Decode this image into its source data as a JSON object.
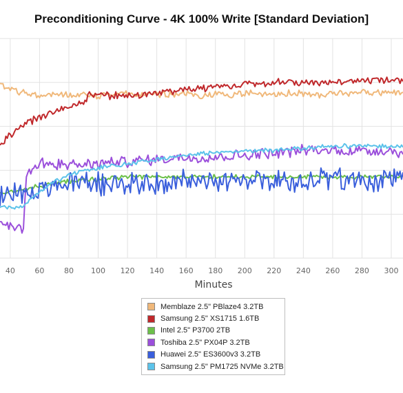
{
  "chart_data": {
    "type": "line",
    "title": "Preconditioning Curve - 4K 100% Write [Standard Deviation]",
    "xlabel": "Minutes",
    "ylabel": "",
    "xlim": [
      33,
      308
    ],
    "ylim": [
      0,
      10
    ],
    "x_ticks": [
      40,
      60,
      80,
      100,
      120,
      140,
      160,
      180,
      200,
      220,
      240,
      260,
      280,
      300
    ],
    "grid": true,
    "legend_position": "bottom-center",
    "series": [
      {
        "name": "Memblaze 2.5\" PBlaze4 3.2TB",
        "color": "#f0b87a",
        "x": [
          33,
          40,
          50,
          60,
          70,
          80,
          90,
          100,
          110,
          120,
          130,
          140,
          150,
          160,
          170,
          180,
          190,
          200,
          210,
          220,
          230,
          240,
          250,
          260,
          270,
          280,
          290,
          300,
          308
        ],
        "y": [
          7.9,
          7.7,
          7.5,
          7.4,
          7.5,
          7.4,
          7.5,
          7.4,
          7.5,
          7.5,
          7.4,
          7.5,
          7.4,
          7.5,
          7.4,
          7.5,
          7.4,
          7.5,
          7.5,
          7.4,
          7.5,
          7.5,
          7.4,
          7.5,
          7.5,
          7.6,
          7.5,
          7.6,
          7.5
        ],
        "noise": 0.12
      },
      {
        "name": "Samsung 2.5\" XS1715 1.6TB",
        "color": "#c0282b",
        "x": [
          33,
          40,
          50,
          60,
          70,
          80,
          90,
          95,
          100,
          120,
          140,
          160,
          180,
          200,
          220,
          240,
          260,
          280,
          300,
          308
        ],
        "y": [
          5.2,
          5.6,
          6.1,
          6.4,
          6.7,
          6.9,
          7.1,
          7.5,
          7.4,
          7.4,
          7.5,
          7.7,
          7.8,
          7.9,
          8.0,
          8.0,
          8.0,
          8.1,
          8.1,
          8.1
        ],
        "noise": 0.13
      },
      {
        "name": "Intel 2.5\" P3700 2TB",
        "color": "#6cc04a",
        "x": [
          33,
          40,
          50,
          60,
          80,
          100,
          120,
          140,
          160,
          180,
          200,
          220,
          240,
          260,
          280,
          300,
          308
        ],
        "y": [
          3.0,
          3.0,
          3.1,
          3.3,
          3.5,
          3.6,
          3.7,
          3.7,
          3.7,
          3.7,
          3.7,
          3.7,
          3.7,
          3.7,
          3.7,
          3.7,
          3.7
        ],
        "noise": 0.08
      },
      {
        "name": "Toshiba 2.5\" PX04P 3.2TB",
        "color": "#9b4fdb",
        "x": [
          33,
          40,
          45,
          49,
          51,
          55,
          60,
          70,
          80,
          100,
          120,
          140,
          160,
          180,
          200,
          220,
          240,
          260,
          280,
          300,
          308
        ],
        "y": [
          1.5,
          1.5,
          1.5,
          1.3,
          3.8,
          4.1,
          4.3,
          4.3,
          4.2,
          4.3,
          4.4,
          4.5,
          4.6,
          4.6,
          4.7,
          4.8,
          4.9,
          4.9,
          4.9,
          4.9,
          4.8
        ],
        "noise": 0.2
      },
      {
        "name": "Huawei 2.5\" ES3600v3 3.2TB",
        "color": "#3a5fdc",
        "x": [
          33,
          40,
          50,
          60,
          70,
          80,
          100,
          120,
          140,
          160,
          180,
          200,
          220,
          240,
          260,
          280,
          300,
          308
        ],
        "y": [
          2.8,
          2.9,
          3.0,
          3.1,
          3.2,
          3.4,
          3.4,
          3.4,
          3.4,
          3.5,
          3.5,
          3.5,
          3.5,
          3.5,
          3.6,
          3.5,
          3.6,
          3.5
        ],
        "noise": 0.4
      },
      {
        "name": "Samsung 2.5\" PM1725 NVMe 3.2TB",
        "color": "#5cc3ea",
        "x": [
          33,
          40,
          45,
          50,
          60,
          70,
          80,
          100,
          120,
          140,
          160,
          180,
          200,
          220,
          240,
          260,
          280,
          300,
          308
        ],
        "y": [
          2.3,
          2.3,
          2.3,
          2.4,
          3.0,
          3.5,
          3.8,
          4.1,
          4.3,
          4.5,
          4.7,
          4.8,
          4.9,
          4.9,
          5.0,
          5.1,
          5.1,
          5.1,
          5.1
        ],
        "noise": 0.08
      }
    ]
  }
}
